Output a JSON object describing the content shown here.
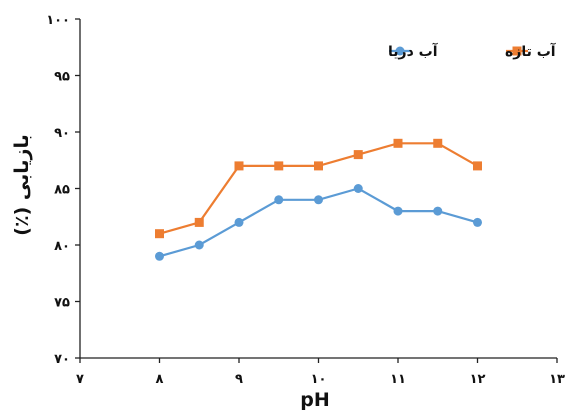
{
  "chart_data": {
    "type": "line",
    "xlabel": "pH",
    "ylabel": "بازیابی (٪)",
    "xlim": [
      7,
      13
    ],
    "ylim": [
      70,
      100
    ],
    "x_ticks": [
      7,
      8,
      9,
      10,
      11,
      12,
      13
    ],
    "x_tick_labels": [
      "۷",
      "۸",
      "۹",
      "۱۰",
      "۱۱",
      "۱۲",
      "۱۳"
    ],
    "y_ticks": [
      70,
      75,
      80,
      85,
      90,
      95,
      100
    ],
    "y_tick_labels": [
      "۷۰",
      "۷۵",
      "۸۰",
      "۸۵",
      "۹۰",
      "۹۵",
      "۱۰۰"
    ],
    "grid": false,
    "legend_position": "top-right",
    "series": [
      {
        "name": "آب تازه",
        "color": "#ED7D31",
        "marker": "square",
        "x": [
          8,
          8.5,
          9,
          9.5,
          10,
          10.5,
          11,
          11.5,
          12
        ],
        "y": [
          81,
          82,
          87,
          87,
          87,
          88,
          89,
          89,
          87
        ]
      },
      {
        "name": "آب دریا",
        "color": "#5B9BD5",
        "marker": "circle",
        "x": [
          8,
          8.5,
          9,
          9.5,
          10,
          10.5,
          11,
          11.5,
          12
        ],
        "y": [
          79,
          80,
          82,
          84,
          84,
          85,
          83,
          83,
          82
        ]
      }
    ]
  }
}
